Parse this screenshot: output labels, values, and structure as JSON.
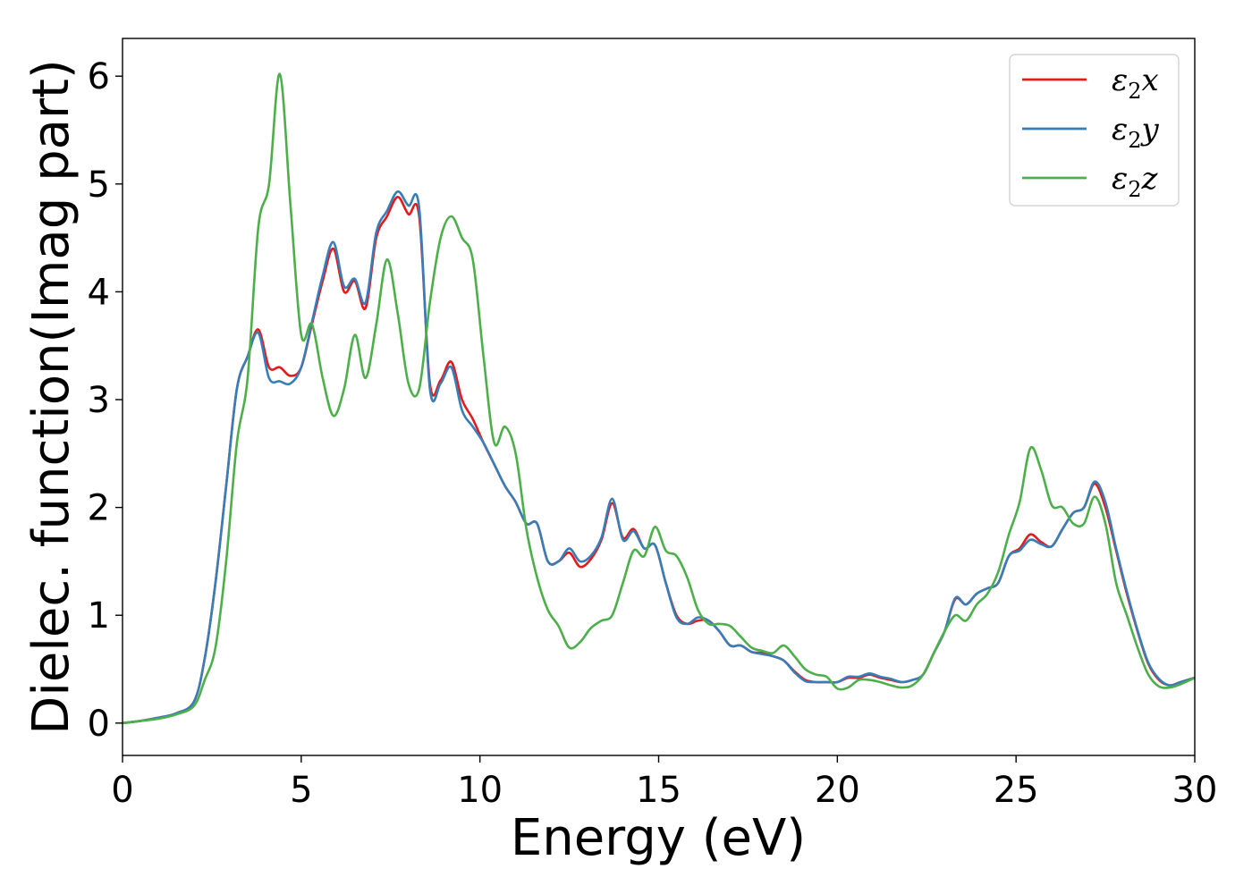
{
  "chart_data": {
    "type": "line",
    "xlabel": "Energy (eV)",
    "ylabel": "Dielec. function(Imag part)",
    "xlim": [
      0,
      30
    ],
    "ylim": [
      -0.3,
      6.35
    ],
    "xticks": [
      "0",
      "5",
      "10",
      "15",
      "20",
      "25",
      "30"
    ],
    "yticks": [
      "0",
      "1",
      "2",
      "3",
      "4",
      "5",
      "6"
    ],
    "grid": false,
    "legend_position": "top-right",
    "series": [
      {
        "name": "ε2x",
        "legend": {
          "base": "ε",
          "sub": "2",
          "tail": "x"
        },
        "color": "#e41a1c",
        "x": [
          0,
          0.5,
          1,
          1.5,
          2,
          2.3,
          2.6,
          2.9,
          3.2,
          3.5,
          3.8,
          4.1,
          4.4,
          4.7,
          5.0,
          5.3,
          5.6,
          5.9,
          6.2,
          6.5,
          6.8,
          7.1,
          7.4,
          7.7,
          8.0,
          8.3,
          8.6,
          8.9,
          9.2,
          9.5,
          9.8,
          10.1,
          10.4,
          10.7,
          11.0,
          11.3,
          11.6,
          11.9,
          12.2,
          12.5,
          12.8,
          13.1,
          13.4,
          13.7,
          14.0,
          14.3,
          14.6,
          14.9,
          15.2,
          15.5,
          15.8,
          16.1,
          16.4,
          16.7,
          17.0,
          17.3,
          17.6,
          17.9,
          18.2,
          18.5,
          18.8,
          19.1,
          19.4,
          19.7,
          20.0,
          20.3,
          20.6,
          20.9,
          21.2,
          21.5,
          21.8,
          22.1,
          22.4,
          22.7,
          23.0,
          23.3,
          23.6,
          23.9,
          24.2,
          24.5,
          24.8,
          25.1,
          25.4,
          25.7,
          26.0,
          26.3,
          26.6,
          26.9,
          27.2,
          27.5,
          27.8,
          28.1,
          28.4,
          28.7,
          29.0,
          29.3,
          29.6,
          30.0
        ],
        "y": [
          0,
          0.02,
          0.05,
          0.09,
          0.2,
          0.6,
          1.3,
          2.2,
          3.1,
          3.4,
          3.65,
          3.3,
          3.3,
          3.22,
          3.3,
          3.7,
          4.1,
          4.4,
          4.0,
          4.1,
          3.85,
          4.5,
          4.7,
          4.88,
          4.72,
          4.7,
          3.15,
          3.18,
          3.35,
          3.0,
          2.82,
          2.6,
          2.4,
          2.2,
          2.05,
          1.85,
          1.85,
          1.5,
          1.5,
          1.58,
          1.45,
          1.52,
          1.7,
          2.04,
          1.72,
          1.8,
          1.62,
          1.65,
          1.3,
          1.0,
          0.92,
          0.95,
          0.95,
          0.85,
          0.72,
          0.72,
          0.66,
          0.65,
          0.62,
          0.58,
          0.48,
          0.4,
          0.38,
          0.38,
          0.38,
          0.42,
          0.42,
          0.45,
          0.42,
          0.4,
          0.38,
          0.4,
          0.45,
          0.65,
          0.85,
          1.15,
          1.1,
          1.2,
          1.25,
          1.3,
          1.55,
          1.62,
          1.75,
          1.68,
          1.64,
          1.8,
          1.95,
          2.0,
          2.22,
          2.0,
          1.6,
          1.2,
          0.85,
          0.55,
          0.4,
          0.35,
          0.38,
          0.42
        ]
      },
      {
        "name": "ε2y",
        "legend": {
          "base": "ε",
          "sub": "2",
          "tail": "y"
        },
        "color": "#377eb8",
        "x": [
          0,
          0.5,
          1,
          1.5,
          2,
          2.3,
          2.6,
          2.9,
          3.2,
          3.5,
          3.8,
          4.1,
          4.4,
          4.7,
          5.0,
          5.3,
          5.6,
          5.9,
          6.2,
          6.5,
          6.8,
          7.1,
          7.4,
          7.7,
          8.0,
          8.3,
          8.6,
          8.9,
          9.2,
          9.5,
          9.8,
          10.1,
          10.4,
          10.7,
          11.0,
          11.3,
          11.6,
          11.9,
          12.2,
          12.5,
          12.8,
          13.1,
          13.4,
          13.7,
          14.0,
          14.3,
          14.6,
          14.9,
          15.2,
          15.5,
          15.8,
          16.1,
          16.4,
          16.7,
          17.0,
          17.3,
          17.6,
          17.9,
          18.2,
          18.5,
          18.8,
          19.1,
          19.4,
          19.7,
          20.0,
          20.3,
          20.6,
          20.9,
          21.2,
          21.5,
          21.8,
          22.1,
          22.4,
          22.7,
          23.0,
          23.3,
          23.6,
          23.9,
          24.2,
          24.5,
          24.8,
          25.1,
          25.4,
          25.7,
          26.0,
          26.3,
          26.6,
          26.9,
          27.2,
          27.5,
          27.8,
          28.1,
          28.4,
          28.7,
          29.0,
          29.3,
          29.6,
          30.0
        ],
        "y": [
          0,
          0.02,
          0.05,
          0.09,
          0.2,
          0.6,
          1.3,
          2.2,
          3.1,
          3.4,
          3.62,
          3.2,
          3.17,
          3.15,
          3.3,
          3.72,
          4.15,
          4.46,
          4.05,
          4.12,
          3.9,
          4.55,
          4.75,
          4.93,
          4.8,
          4.78,
          3.1,
          3.15,
          3.3,
          2.9,
          2.75,
          2.6,
          2.4,
          2.2,
          2.05,
          1.85,
          1.85,
          1.5,
          1.5,
          1.62,
          1.5,
          1.55,
          1.72,
          2.08,
          1.7,
          1.78,
          1.62,
          1.65,
          1.3,
          0.98,
          0.92,
          0.98,
          0.95,
          0.85,
          0.72,
          0.72,
          0.66,
          0.64,
          0.62,
          0.58,
          0.47,
          0.39,
          0.38,
          0.38,
          0.38,
          0.43,
          0.43,
          0.46,
          0.43,
          0.41,
          0.38,
          0.4,
          0.45,
          0.65,
          0.85,
          1.16,
          1.1,
          1.2,
          1.25,
          1.3,
          1.55,
          1.6,
          1.7,
          1.66,
          1.64,
          1.8,
          1.95,
          2.0,
          2.24,
          2.05,
          1.62,
          1.22,
          0.86,
          0.56,
          0.41,
          0.35,
          0.38,
          0.42
        ]
      },
      {
        "name": "ε2z",
        "legend": {
          "base": "ε",
          "sub": "2",
          "tail": "z"
        },
        "color": "#4daf4a",
        "x": [
          0,
          0.5,
          1,
          1.5,
          2,
          2.3,
          2.6,
          2.9,
          3.2,
          3.5,
          3.8,
          4.1,
          4.4,
          4.7,
          5.0,
          5.3,
          5.6,
          5.9,
          6.2,
          6.5,
          6.8,
          7.1,
          7.4,
          7.7,
          8.0,
          8.3,
          8.6,
          8.9,
          9.2,
          9.5,
          9.8,
          10.1,
          10.4,
          10.7,
          11.0,
          11.3,
          11.6,
          11.9,
          12.2,
          12.5,
          12.8,
          13.1,
          13.4,
          13.7,
          14.0,
          14.3,
          14.6,
          14.9,
          15.2,
          15.5,
          15.8,
          16.1,
          16.4,
          16.7,
          17.0,
          17.3,
          17.6,
          17.9,
          18.2,
          18.5,
          18.8,
          19.1,
          19.4,
          19.7,
          20.0,
          20.3,
          20.6,
          20.9,
          21.2,
          21.5,
          21.8,
          22.1,
          22.4,
          22.7,
          23.0,
          23.3,
          23.6,
          23.9,
          24.2,
          24.5,
          24.8,
          25.1,
          25.4,
          25.7,
          26.0,
          26.3,
          26.6,
          26.9,
          27.2,
          27.5,
          27.8,
          28.1,
          28.4,
          28.7,
          29.0,
          29.3,
          29.6,
          30.0
        ],
        "y": [
          0,
          0.02,
          0.04,
          0.08,
          0.16,
          0.4,
          0.7,
          1.5,
          2.6,
          3.2,
          4.6,
          5.0,
          6.02,
          4.8,
          3.6,
          3.7,
          3.2,
          2.85,
          3.1,
          3.6,
          3.2,
          3.7,
          4.3,
          3.8,
          3.15,
          3.1,
          3.9,
          4.5,
          4.7,
          4.5,
          4.3,
          3.4,
          2.6,
          2.75,
          2.5,
          1.8,
          1.35,
          1.05,
          0.9,
          0.7,
          0.75,
          0.88,
          0.95,
          1.0,
          1.3,
          1.6,
          1.55,
          1.82,
          1.6,
          1.55,
          1.35,
          1.05,
          0.92,
          0.92,
          0.9,
          0.8,
          0.7,
          0.67,
          0.65,
          0.72,
          0.62,
          0.5,
          0.45,
          0.43,
          0.32,
          0.33,
          0.4,
          0.4,
          0.38,
          0.35,
          0.33,
          0.35,
          0.45,
          0.65,
          0.85,
          1.0,
          0.95,
          1.1,
          1.2,
          1.4,
          1.75,
          2.05,
          2.55,
          2.35,
          2.02,
          2.0,
          1.85,
          1.85,
          2.1,
          1.85,
          1.3,
          1.0,
          0.7,
          0.45,
          0.34,
          0.33,
          0.36,
          0.42
        ]
      }
    ]
  }
}
